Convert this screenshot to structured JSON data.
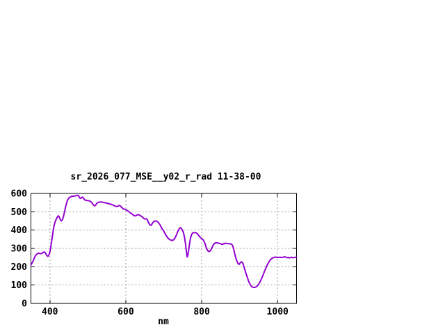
{
  "page": {
    "background": "#ffffff",
    "border_color": "#000000",
    "grid_color": "#989898",
    "text_color": "#000000"
  },
  "chart_data": {
    "type": "line",
    "title": "sr_2026_077_MSE__y02_r_rad 11-38-00",
    "xlabel": "nm",
    "ylabel": "",
    "xlim": [
      350,
      1050
    ],
    "ylim": [
      0,
      600
    ],
    "xticks": [
      400,
      600,
      800,
      1000
    ],
    "yticks": [
      0,
      100,
      200,
      300,
      400,
      500,
      600
    ],
    "grid": true,
    "legend_position": "none",
    "line_color": "#9400D3",
    "series": [
      {
        "name": "sr_2026_077_MSE__y02_r_rad",
        "points": [
          [
            350,
            210
          ],
          [
            352,
            217
          ],
          [
            355,
            228
          ],
          [
            358,
            243
          ],
          [
            361,
            257
          ],
          [
            364,
            266
          ],
          [
            367,
            271
          ],
          [
            370,
            274
          ],
          [
            373,
            272
          ],
          [
            376,
            271
          ],
          [
            379,
            273
          ],
          [
            382,
            278
          ],
          [
            385,
            281
          ],
          [
            388,
            276
          ],
          [
            391,
            264
          ],
          [
            394,
            257
          ],
          [
            396,
            259
          ],
          [
            398,
            268
          ],
          [
            400,
            282
          ],
          [
            402,
            305
          ],
          [
            404,
            332
          ],
          [
            406,
            360
          ],
          [
            408,
            388
          ],
          [
            410,
            412
          ],
          [
            412,
            432
          ],
          [
            414,
            446
          ],
          [
            416,
            456
          ],
          [
            418,
            465
          ],
          [
            420,
            473
          ],
          [
            422,
            478
          ],
          [
            424,
            473
          ],
          [
            426,
            464
          ],
          [
            428,
            453
          ],
          [
            430,
            450
          ],
          [
            432,
            453
          ],
          [
            434,
            462
          ],
          [
            436,
            476
          ],
          [
            438,
            494
          ],
          [
            440,
            514
          ],
          [
            442,
            532
          ],
          [
            444,
            548
          ],
          [
            446,
            561
          ],
          [
            448,
            569
          ],
          [
            450,
            575
          ],
          [
            453,
            580
          ],
          [
            456,
            583
          ],
          [
            459,
            585
          ],
          [
            462,
            585
          ],
          [
            465,
            586
          ],
          [
            468,
            587
          ],
          [
            471,
            589
          ],
          [
            474,
            590
          ],
          [
            476,
            586
          ],
          [
            478,
            578
          ],
          [
            480,
            573
          ],
          [
            482,
            574
          ],
          [
            484,
            578
          ],
          [
            486,
            580
          ],
          [
            488,
            576
          ],
          [
            490,
            569
          ],
          [
            493,
            564
          ],
          [
            496,
            562
          ],
          [
            499,
            561
          ],
          [
            502,
            560
          ],
          [
            505,
            559
          ],
          [
            508,
            555
          ],
          [
            511,
            548
          ],
          [
            514,
            539
          ],
          [
            516,
            534
          ],
          [
            518,
            532
          ],
          [
            520,
            535
          ],
          [
            522,
            541
          ],
          [
            524,
            547
          ],
          [
            527,
            551
          ],
          [
            530,
            553
          ],
          [
            533,
            553
          ],
          [
            536,
            553
          ],
          [
            539,
            552
          ],
          [
            542,
            551
          ],
          [
            545,
            549
          ],
          [
            548,
            548
          ],
          [
            551,
            546
          ],
          [
            554,
            545
          ],
          [
            557,
            543
          ],
          [
            560,
            542
          ],
          [
            563,
            539
          ],
          [
            566,
            537
          ],
          [
            569,
            534
          ],
          [
            572,
            531
          ],
          [
            575,
            529
          ],
          [
            578,
            529
          ],
          [
            581,
            533
          ],
          [
            584,
            534
          ],
          [
            587,
            529
          ],
          [
            590,
            522
          ],
          [
            593,
            517
          ],
          [
            596,
            514
          ],
          [
            599,
            512
          ],
          [
            602,
            509
          ],
          [
            605,
            505
          ],
          [
            608,
            501
          ],
          [
            611,
            496
          ],
          [
            614,
            491
          ],
          [
            617,
            487
          ],
          [
            620,
            482
          ],
          [
            623,
            478
          ],
          [
            626,
            478
          ],
          [
            629,
            482
          ],
          [
            632,
            484
          ],
          [
            635,
            483
          ],
          [
            638,
            479
          ],
          [
            641,
            476
          ],
          [
            644,
            471
          ],
          [
            647,
            464
          ],
          [
            650,
            461
          ],
          [
            653,
            462
          ],
          [
            655,
            461
          ],
          [
            657,
            454
          ],
          [
            659,
            445
          ],
          [
            661,
            437
          ],
          [
            663,
            430
          ],
          [
            665,
            426
          ],
          [
            667,
            427
          ],
          [
            669,
            433
          ],
          [
            671,
            440
          ],
          [
            673,
            445
          ],
          [
            675,
            448
          ],
          [
            678,
            450
          ],
          [
            681,
            449
          ],
          [
            684,
            445
          ],
          [
            687,
            438
          ],
          [
            690,
            430
          ],
          [
            693,
            417
          ],
          [
            696,
            406
          ],
          [
            699,
            398
          ],
          [
            702,
            387
          ],
          [
            705,
            375
          ],
          [
            708,
            365
          ],
          [
            711,
            357
          ],
          [
            714,
            351
          ],
          [
            717,
            347
          ],
          [
            720,
            344
          ],
          [
            723,
            344
          ],
          [
            726,
            347
          ],
          [
            729,
            355
          ],
          [
            732,
            367
          ],
          [
            735,
            382
          ],
          [
            738,
            396
          ],
          [
            741,
            408
          ],
          [
            743,
            413
          ],
          [
            745,
            412
          ],
          [
            747,
            407
          ],
          [
            749,
            401
          ],
          [
            751,
            392
          ],
          [
            753,
            378
          ],
          [
            755,
            358
          ],
          [
            757,
            330
          ],
          [
            759,
            295
          ],
          [
            761,
            262
          ],
          [
            762,
            253
          ],
          [
            764,
            268
          ],
          [
            766,
            295
          ],
          [
            768,
            325
          ],
          [
            770,
            350
          ],
          [
            772,
            367
          ],
          [
            774,
            378
          ],
          [
            776,
            384
          ],
          [
            779,
            387
          ],
          [
            782,
            386
          ],
          [
            785,
            385
          ],
          [
            788,
            382
          ],
          [
            791,
            374
          ],
          [
            794,
            365
          ],
          [
            797,
            358
          ],
          [
            800,
            354
          ],
          [
            803,
            349
          ],
          [
            806,
            340
          ],
          [
            809,
            325
          ],
          [
            812,
            305
          ],
          [
            815,
            291
          ],
          [
            818,
            283
          ],
          [
            821,
            284
          ],
          [
            824,
            291
          ],
          [
            827,
            303
          ],
          [
            830,
            317
          ],
          [
            833,
            326
          ],
          [
            836,
            330
          ],
          [
            839,
            331
          ],
          [
            842,
            330
          ],
          [
            845,
            328
          ],
          [
            848,
            327
          ],
          [
            851,
            325
          ],
          [
            854,
            321
          ],
          [
            857,
            324
          ],
          [
            860,
            327
          ],
          [
            863,
            328
          ],
          [
            866,
            327
          ],
          [
            869,
            326
          ],
          [
            872,
            326
          ],
          [
            875,
            325
          ],
          [
            878,
            324
          ],
          [
            881,
            317
          ],
          [
            884,
            300
          ],
          [
            887,
            272
          ],
          [
            890,
            248
          ],
          [
            893,
            230
          ],
          [
            896,
            216
          ],
          [
            899,
            213
          ],
          [
            902,
            222
          ],
          [
            905,
            227
          ],
          [
            908,
            221
          ],
          [
            911,
            203
          ],
          [
            914,
            182
          ],
          [
            917,
            162
          ],
          [
            920,
            143
          ],
          [
            923,
            125
          ],
          [
            926,
            110
          ],
          [
            929,
            99
          ],
          [
            932,
            92
          ],
          [
            935,
            88
          ],
          [
            938,
            87
          ],
          [
            941,
            88
          ],
          [
            944,
            91
          ],
          [
            947,
            96
          ],
          [
            950,
            104
          ],
          [
            953,
            114
          ],
          [
            956,
            127
          ],
          [
            959,
            141
          ],
          [
            962,
            156
          ],
          [
            965,
            172
          ],
          [
            968,
            188
          ],
          [
            971,
            202
          ],
          [
            974,
            214
          ],
          [
            977,
            226
          ],
          [
            980,
            235
          ],
          [
            983,
            242
          ],
          [
            986,
            247
          ],
          [
            989,
            250
          ],
          [
            992,
            252
          ],
          [
            995,
            252
          ],
          [
            998,
            251
          ],
          [
            1001,
            250
          ],
          [
            1004,
            251
          ],
          [
            1007,
            252
          ],
          [
            1010,
            250
          ],
          [
            1013,
            251
          ],
          [
            1016,
            253
          ],
          [
            1019,
            254
          ],
          [
            1022,
            252
          ],
          [
            1025,
            249
          ],
          [
            1028,
            251
          ],
          [
            1031,
            248
          ],
          [
            1034,
            250
          ],
          [
            1037,
            252
          ],
          [
            1040,
            249
          ],
          [
            1043,
            250
          ],
          [
            1046,
            251
          ],
          [
            1050,
            252
          ]
        ]
      }
    ]
  }
}
